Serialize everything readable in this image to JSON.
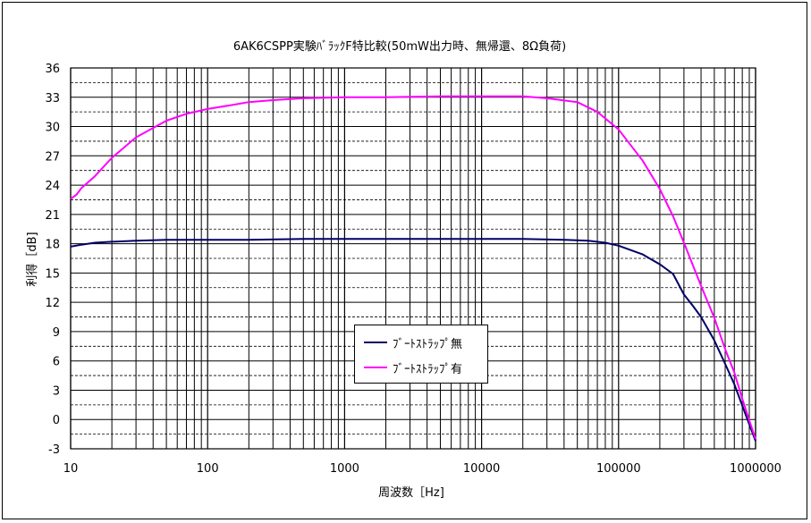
{
  "chart_data": {
    "type": "line",
    "title": "6AK6CSPP実験ﾊﾞﾗｯｸF特比較(50mW出力時、無帰還、8Ω負荷)",
    "xlabel": "周波数［Hz]",
    "ylabel": "利得［dB]",
    "x_scale": "log",
    "xlim": [
      10,
      1000000
    ],
    "ylim": [
      -3,
      36
    ],
    "x_ticks": [
      "10",
      "100",
      "1000",
      "10000",
      "100000",
      "1000000"
    ],
    "y_ticks": [
      "36",
      "33",
      "30",
      "27",
      "24",
      "21",
      "18",
      "15",
      "12",
      "9",
      "6",
      "3",
      "0",
      "-3"
    ],
    "grid": true,
    "legend_position": "center-bottom",
    "series": [
      {
        "name": "ﾌﾞｰﾄｽﾄﾗｯﾌﾟ無",
        "color": "#000066",
        "x": [
          10,
          12,
          15,
          20,
          30,
          50,
          100,
          200,
          500,
          1000,
          2000,
          5000,
          10000,
          20000,
          40000,
          60000,
          80000,
          100000,
          150000,
          200000,
          250000,
          300000,
          350000,
          400000,
          500000,
          600000,
          700000,
          800000,
          900000,
          1000000
        ],
        "y": [
          17.7,
          17.9,
          18.1,
          18.2,
          18.3,
          18.4,
          18.4,
          18.4,
          18.5,
          18.5,
          18.5,
          18.5,
          18.5,
          18.5,
          18.4,
          18.3,
          18.1,
          17.8,
          16.9,
          15.9,
          14.9,
          12.8,
          11.6,
          10.5,
          8.1,
          5.7,
          3.6,
          1.4,
          -0.5,
          -2.2
        ]
      },
      {
        "name": "ﾌﾞｰﾄｽﾄﾗｯﾌﾟ有",
        "color": "#ff00ff",
        "x": [
          10,
          11,
          12,
          15,
          20,
          30,
          50,
          70,
          100,
          150,
          200,
          300,
          500,
          1000,
          2000,
          5000,
          10000,
          20000,
          30000,
          50000,
          70000,
          100000,
          150000,
          200000,
          250000,
          300000,
          400000,
          500000,
          600000,
          700000,
          800000,
          900000,
          1000000
        ],
        "y": [
          22.6,
          23.0,
          23.7,
          24.9,
          26.8,
          28.9,
          30.6,
          31.3,
          31.8,
          32.2,
          32.5,
          32.7,
          32.9,
          33.0,
          33.0,
          33.1,
          33.1,
          33.1,
          32.9,
          32.5,
          31.5,
          29.7,
          26.5,
          23.6,
          20.8,
          18.1,
          13.7,
          10.4,
          7.2,
          4.8,
          2.1,
          -0.1,
          -2.0
        ]
      }
    ]
  }
}
